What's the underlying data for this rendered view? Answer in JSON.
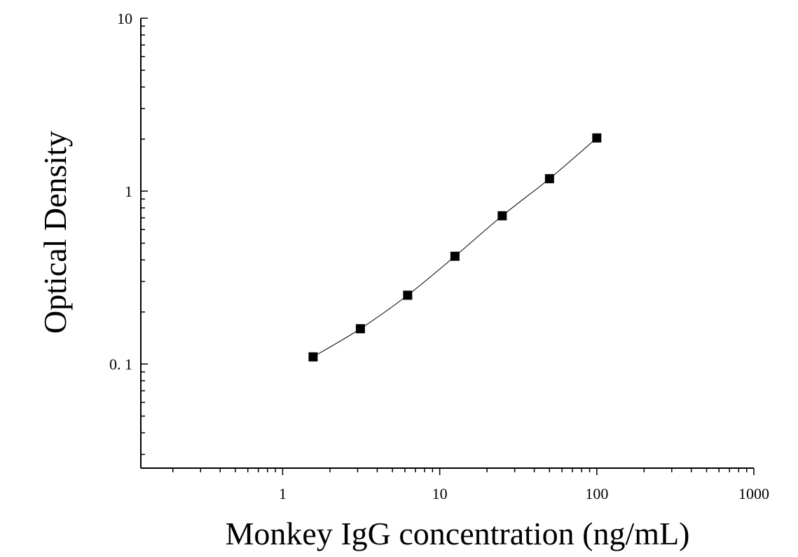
{
  "chart_data": {
    "type": "scatter",
    "title": "",
    "xlabel": "Monkey IgG concentration (ng/mL)",
    "ylabel": "Optical Density",
    "x_scale": "log",
    "y_scale": "log",
    "xlim": [
      0.125,
      1000
    ],
    "ylim": [
      0.025,
      10
    ],
    "x_ticks": [
      {
        "value": 1,
        "label": "1"
      },
      {
        "value": 10,
        "label": "10"
      },
      {
        "value": 100,
        "label": "100"
      },
      {
        "value": 1000,
        "label": "1000"
      }
    ],
    "y_ticks": [
      {
        "value": 0.1,
        "label": "0. 1"
      },
      {
        "value": 1,
        "label": "1"
      },
      {
        "value": 10,
        "label": "10"
      }
    ],
    "grid": false,
    "legend": "none",
    "series": [
      {
        "marker": "square",
        "color": "#000000",
        "fit_line": true,
        "x": [
          1.5625,
          3.125,
          6.25,
          12.5,
          25,
          50,
          100
        ],
        "y": [
          0.11,
          0.16,
          0.25,
          0.42,
          0.72,
          1.18,
          2.03
        ]
      }
    ]
  }
}
